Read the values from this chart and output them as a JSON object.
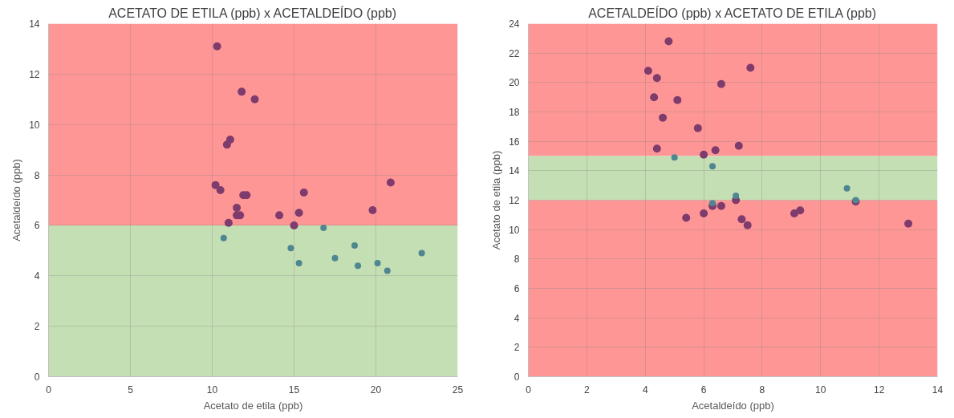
{
  "chart_data": [
    {
      "type": "scatter",
      "title": "ACETATO DE ETILA (ppb) x ACETALDEÍDO (ppb)",
      "xlabel": "Acetato de etila (ppb)",
      "ylabel": "Acetaldeído (ppb)",
      "xlim": [
        0,
        25
      ],
      "xticks": [
        0,
        5,
        10,
        15,
        20,
        25
      ],
      "ylim": [
        0,
        14
      ],
      "yticks": [
        0,
        2,
        4,
        6,
        8,
        10,
        12,
        14
      ],
      "grid": true,
      "marker": "circle",
      "bands": [
        {
          "axis": "y",
          "from": 6,
          "to": 14,
          "color": "#ff9696"
        },
        {
          "axis": "y",
          "from": 0,
          "to": 6,
          "color": "#c5dfb4"
        }
      ],
      "series": [
        {
          "color": "#7e3b6c",
          "x": [
            10.3,
            11.8,
            12.6,
            11.1,
            10.9,
            10.2,
            10.5,
            11.9,
            12.1,
            15.6,
            20.9,
            19.8,
            11.5,
            11.5,
            11.7,
            14.1,
            15.3,
            11.0,
            15.0
          ],
          "values": [
            13.1,
            11.3,
            11.0,
            9.4,
            9.2,
            7.6,
            7.4,
            7.2,
            7.2,
            7.3,
            7.7,
            6.6,
            6.7,
            6.4,
            6.4,
            6.4,
            6.5,
            6.1,
            6.0
          ]
        },
        {
          "color": "#4e8790",
          "x": [
            10.7,
            14.8,
            16.8,
            15.3,
            17.5,
            18.7,
            18.9,
            20.1,
            20.7,
            22.8
          ],
          "values": [
            5.5,
            5.1,
            5.9,
            4.5,
            4.7,
            5.2,
            4.4,
            4.5,
            4.2,
            4.9
          ]
        }
      ]
    },
    {
      "type": "scatter",
      "title": "ACETALDEÍDO (ppb) x ACETATO DE ETILA (ppb)",
      "xlabel": "Acetaldeído (ppb)",
      "ylabel": "Acetato de etila (ppb)",
      "xlim": [
        0,
        14
      ],
      "xticks": [
        0,
        2,
        4,
        6,
        8,
        10,
        12,
        14
      ],
      "ylim": [
        0,
        24
      ],
      "yticks": [
        0,
        2,
        4,
        6,
        8,
        10,
        12,
        14,
        16,
        18,
        20,
        22,
        24
      ],
      "grid": true,
      "marker": "circle",
      "bands": [
        {
          "axis": "y",
          "from": 15,
          "to": 24,
          "color": "#ff9696"
        },
        {
          "axis": "y",
          "from": 12,
          "to": 15,
          "color": "#c5dfb4"
        },
        {
          "axis": "y",
          "from": 0,
          "to": 12,
          "color": "#ff9696"
        }
      ],
      "series": [
        {
          "color": "#7e3b6c",
          "x": [
            4.8,
            4.1,
            4.4,
            7.6,
            6.6,
            4.3,
            5.1,
            4.6,
            5.8,
            4.4,
            6.0,
            6.4,
            7.2,
            7.1,
            6.3,
            6.6,
            6.0,
            5.4,
            7.3,
            7.5,
            9.1,
            9.3,
            11.2,
            13.0
          ],
          "values": [
            22.8,
            20.8,
            20.3,
            21.0,
            19.9,
            19.0,
            18.8,
            17.6,
            16.9,
            15.5,
            15.1,
            15.4,
            15.7,
            12.0,
            11.6,
            11.6,
            11.1,
            10.8,
            10.7,
            10.3,
            11.1,
            11.3,
            11.9,
            10.4
          ]
        },
        {
          "color": "#4e8790",
          "x": [
            5.0,
            6.3,
            7.1,
            6.3,
            10.9,
            11.2
          ],
          "values": [
            14.9,
            14.3,
            12.3,
            11.8,
            12.8,
            12.0
          ]
        }
      ]
    }
  ]
}
